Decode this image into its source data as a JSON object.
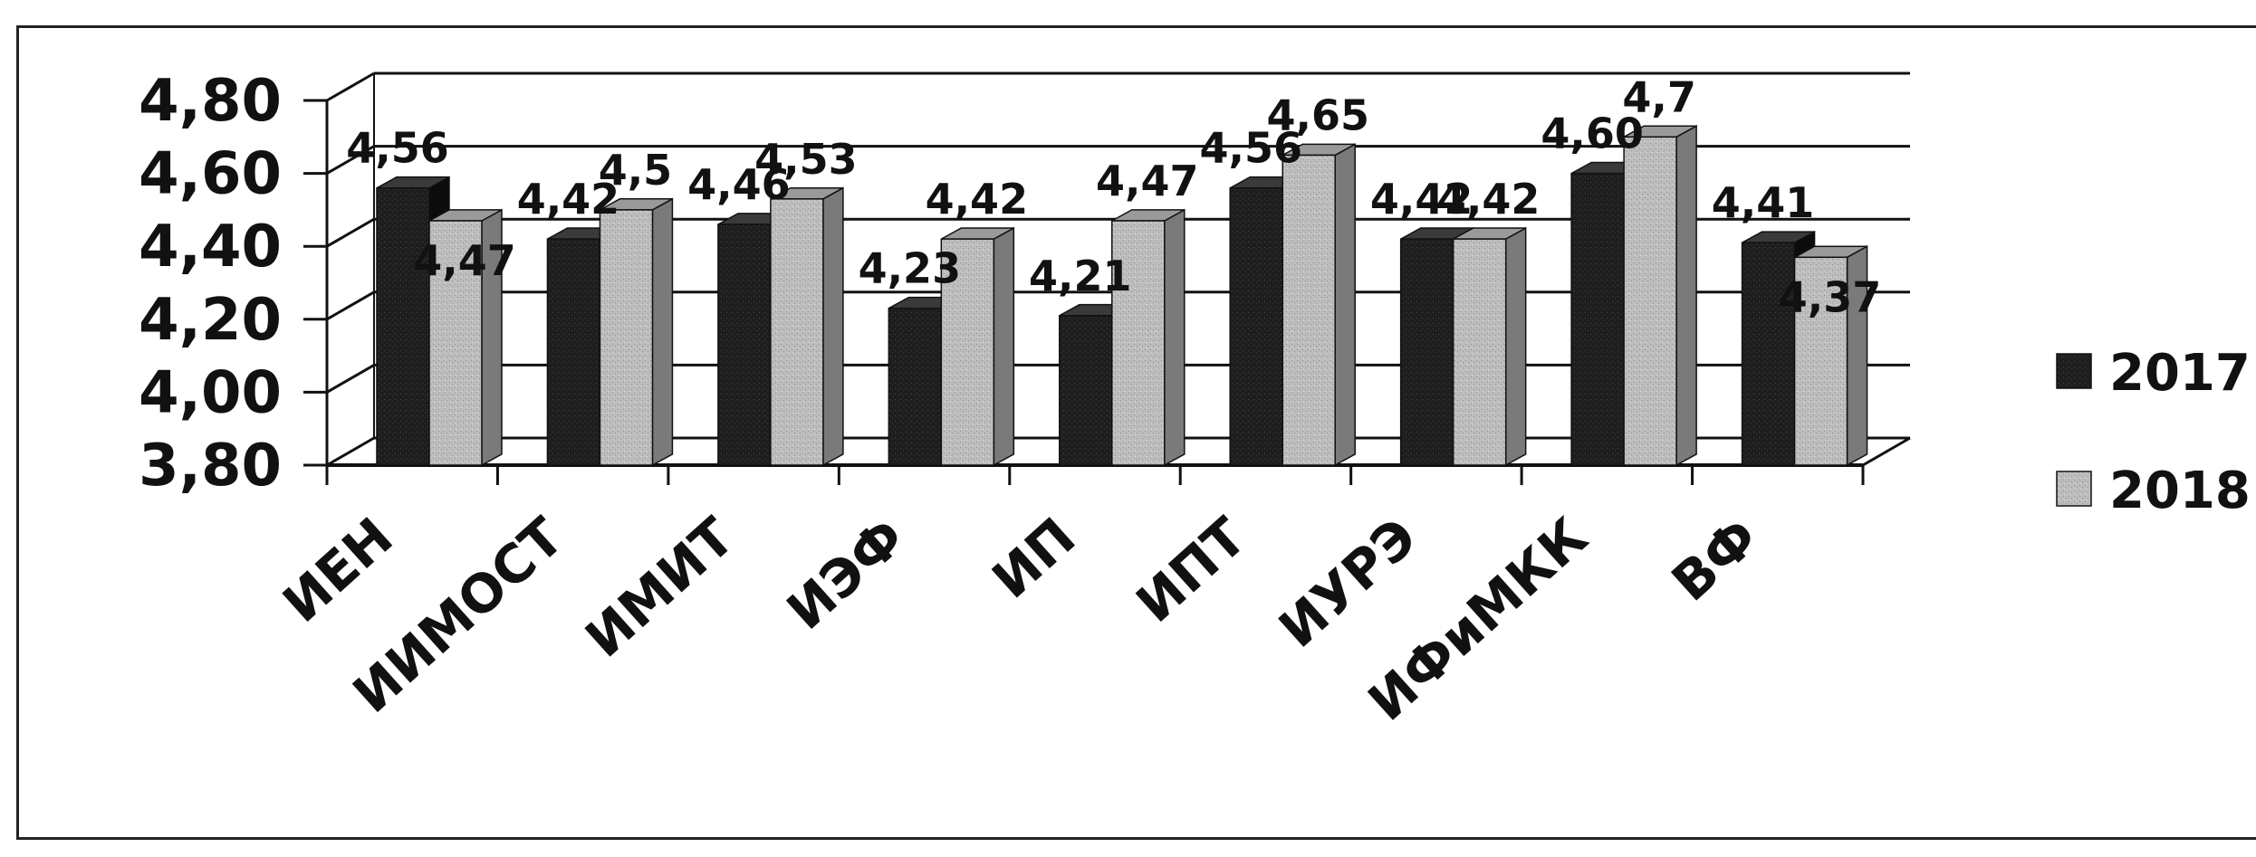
{
  "chart_data": {
    "type": "bar",
    "categories": [
      "ИЕН",
      "ИИМОСТ",
      "ИМИТ",
      "ИЭФ",
      "ИП",
      "ИПТ",
      "ИУРЭ",
      "ИФиМКК",
      "ВФ"
    ],
    "series": [
      {
        "name": "2017",
        "values": [
          4.56,
          4.42,
          4.46,
          4.23,
          4.21,
          4.56,
          4.42,
          4.6,
          4.41
        ],
        "labels": [
          "4,56",
          "4,42",
          "4,46",
          "4,23",
          "4,21",
          "4,56",
          "4,42",
          "4,60",
          "4,41"
        ]
      },
      {
        "name": "2018",
        "values": [
          4.47,
          4.5,
          4.53,
          4.42,
          4.47,
          4.65,
          4.42,
          4.7,
          4.37
        ],
        "labels": [
          "4,47",
          "4,5",
          "4,53",
          "4,42",
          "4,47",
          "4,65",
          "4,42",
          "4,7",
          "4,37"
        ]
      }
    ],
    "y_ticks": [
      "3,80",
      "4,00",
      "4,20",
      "4,40",
      "4,60",
      "4,80"
    ],
    "ylim": [
      3.8,
      4.8
    ],
    "grid": true,
    "legend_position": "right",
    "style": "3d-clustered-column",
    "colors": {
      "2017": "#1c1c1c",
      "2018": "#b9b9b9"
    }
  }
}
